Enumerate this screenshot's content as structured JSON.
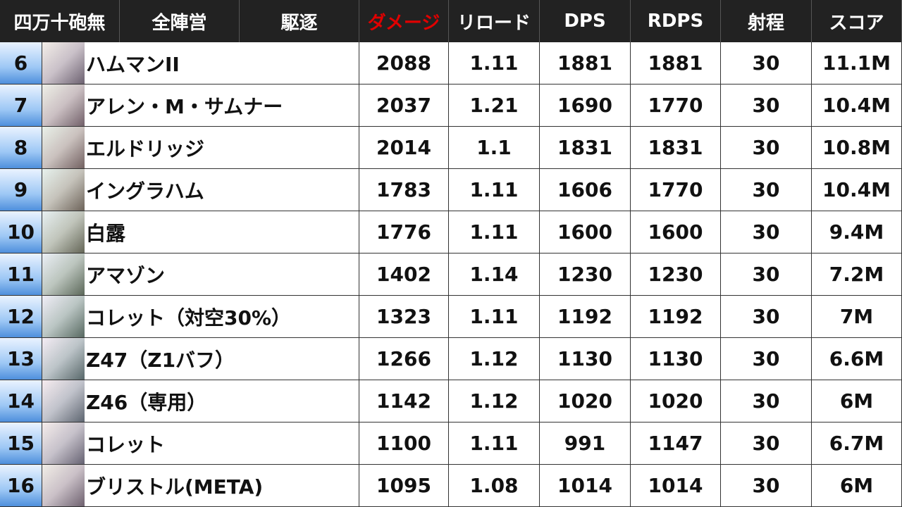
{
  "header": [
    "四万十砲無",
    "全陣営",
    "駆逐",
    "ダメージ",
    "リロード",
    "DPS",
    "RDPS",
    "射程",
    "スコア"
  ],
  "table": {
    "rows": [
      {
        "rank": 6,
        "name": "ハムマンII",
        "damage": 2088,
        "reload": 1.11,
        "dps": 1881,
        "rdps": 1881,
        "range": 30,
        "score": "11.1M"
      },
      {
        "rank": 7,
        "name": "アレン・M・サムナー",
        "damage": 2037,
        "reload": 1.21,
        "dps": 1690,
        "rdps": 1770,
        "range": 30,
        "score": "10.4M"
      },
      {
        "rank": 8,
        "name": "エルドリッジ",
        "damage": 2014,
        "reload": 1.1,
        "dps": 1831,
        "rdps": 1831,
        "range": 30,
        "score": "10.8M"
      },
      {
        "rank": 9,
        "name": "イングラハム",
        "damage": 1783,
        "reload": 1.11,
        "dps": 1606,
        "rdps": 1770,
        "range": 30,
        "score": "10.4M"
      },
      {
        "rank": 10,
        "name": "白露",
        "damage": 1776,
        "reload": 1.11,
        "dps": 1600,
        "rdps": 1600,
        "range": 30,
        "score": "9.4M"
      },
      {
        "rank": 11,
        "name": "アマゾン",
        "damage": 1402,
        "reload": 1.14,
        "dps": 1230,
        "rdps": 1230,
        "range": 30,
        "score": "7.2M"
      },
      {
        "rank": 12,
        "name": "コレット（対空30%）",
        "damage": 1323,
        "reload": 1.11,
        "dps": 1192,
        "rdps": 1192,
        "range": 30,
        "score": "7M"
      },
      {
        "rank": 13,
        "name": "Z47（Z1バフ）",
        "damage": 1266,
        "reload": 1.12,
        "dps": 1130,
        "rdps": 1130,
        "range": 30,
        "score": "6.6M"
      },
      {
        "rank": 14,
        "name": "Z46（専用）",
        "damage": 1142,
        "reload": 1.12,
        "dps": 1020,
        "rdps": 1020,
        "range": 30,
        "score": "6M"
      },
      {
        "rank": 15,
        "name": "コレット",
        "damage": 1100,
        "reload": 1.11,
        "dps": 991,
        "rdps": 1147,
        "range": 30,
        "score": "6.7M"
      },
      {
        "rank": 16,
        "name": "ブリストル(META)",
        "damage": 1095,
        "reload": 1.08,
        "dps": 1014,
        "rdps": 1014,
        "range": 30,
        "score": "6M"
      }
    ]
  }
}
